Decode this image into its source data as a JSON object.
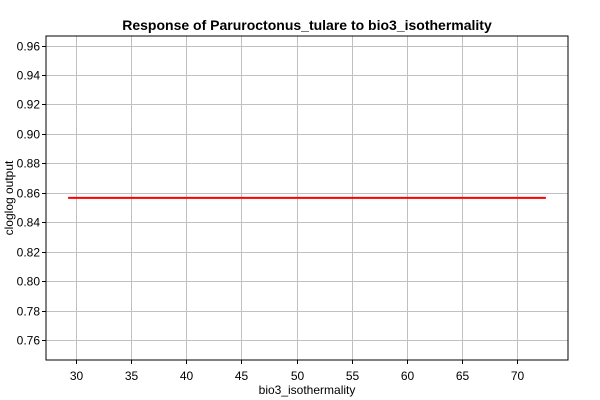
{
  "chart_data": {
    "type": "line",
    "title": "Response of Paruroctonus_tulare to bio3_isothermality",
    "xlabel": "bio3_isothermality",
    "ylabel": "cloglog output",
    "xlim": [
      27.3,
      74.6
    ],
    "ylim": [
      0.7465,
      0.9665
    ],
    "x_ticks": [
      30,
      35,
      40,
      45,
      50,
      55,
      60,
      65,
      70
    ],
    "x_tick_labels": [
      "30",
      "35",
      "40",
      "45",
      "50",
      "55",
      "60",
      "65",
      "70"
    ],
    "y_ticks": [
      0.76,
      0.78,
      0.8,
      0.82,
      0.84,
      0.86,
      0.88,
      0.9,
      0.92,
      0.94,
      0.96
    ],
    "y_tick_labels": [
      "0.76",
      "0.78",
      "0.80",
      "0.82",
      "0.84",
      "0.86",
      "0.88",
      "0.90",
      "0.92",
      "0.94",
      "0.96"
    ],
    "grid": true,
    "legend": "none",
    "series": [
      {
        "color": "#ff0000",
        "x": [
          29.3,
          72.6
        ],
        "y": [
          0.8566,
          0.8566
        ]
      }
    ]
  }
}
